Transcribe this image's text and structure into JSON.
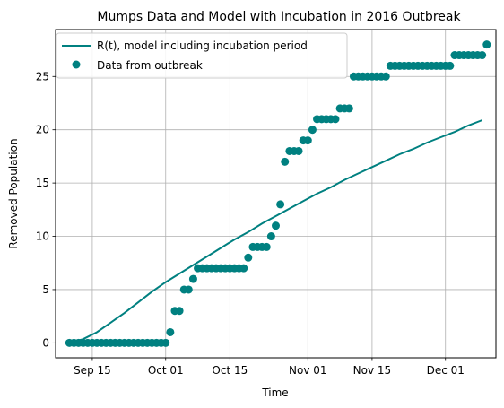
{
  "chart_data": {
    "type": "line",
    "title": "Mumps Data and Model with Incubation in 2016 Outbreak",
    "xlabel": "Time",
    "ylabel": "Removed Population",
    "x_ticks": [
      "Sep 15",
      "Oct 01",
      "Oct 15",
      "Nov 01",
      "Nov 15",
      "Dec 01"
    ],
    "x_tick_dates": [
      "2016-09-15",
      "2016-10-01",
      "2016-10-15",
      "2016-11-01",
      "2016-11-15",
      "2016-12-01"
    ],
    "y_ticks": [
      0,
      5,
      10,
      15,
      20,
      25
    ],
    "xlim": [
      "2016-09-07",
      "2016-12-12"
    ],
    "ylim": [
      -1.4,
      29.4
    ],
    "grid": true,
    "legend_position": "upper-left",
    "series": [
      {
        "name": "R(t), model including incubation period",
        "kind": "line",
        "color": "#008080",
        "x": [
          "2016-09-10",
          "2016-09-13",
          "2016-09-16",
          "2016-09-19",
          "2016-09-22",
          "2016-09-25",
          "2016-09-28",
          "2016-10-01",
          "2016-10-04",
          "2016-10-07",
          "2016-10-10",
          "2016-10-13",
          "2016-10-16",
          "2016-10-19",
          "2016-10-22",
          "2016-10-25",
          "2016-10-28",
          "2016-10-31",
          "2016-11-03",
          "2016-11-06",
          "2016-11-09",
          "2016-11-12",
          "2016-11-15",
          "2016-11-18",
          "2016-11-21",
          "2016-11-24",
          "2016-11-27",
          "2016-11-30",
          "2016-12-03",
          "2016-12-06",
          "2016-12-09"
        ],
        "y": [
          0,
          0.35,
          1.0,
          1.9,
          2.8,
          3.8,
          4.8,
          5.7,
          6.5,
          7.3,
          8.1,
          8.9,
          9.7,
          10.4,
          11.2,
          11.9,
          12.6,
          13.3,
          14.0,
          14.6,
          15.3,
          15.9,
          16.5,
          17.1,
          17.7,
          18.2,
          18.8,
          19.3,
          19.8,
          20.4,
          20.9
        ]
      },
      {
        "name": "Data from outbreak",
        "kind": "scatter",
        "color": "#008080",
        "x": [
          "2016-09-10",
          "2016-09-11",
          "2016-09-12",
          "2016-09-13",
          "2016-09-14",
          "2016-09-15",
          "2016-09-16",
          "2016-09-17",
          "2016-09-18",
          "2016-09-19",
          "2016-09-20",
          "2016-09-21",
          "2016-09-22",
          "2016-09-23",
          "2016-09-24",
          "2016-09-25",
          "2016-09-26",
          "2016-09-27",
          "2016-09-28",
          "2016-09-29",
          "2016-09-30",
          "2016-10-01",
          "2016-10-02",
          "2016-10-03",
          "2016-10-04",
          "2016-10-05",
          "2016-10-06",
          "2016-10-07",
          "2016-10-08",
          "2016-10-09",
          "2016-10-10",
          "2016-10-11",
          "2016-10-12",
          "2016-10-13",
          "2016-10-14",
          "2016-10-15",
          "2016-10-16",
          "2016-10-17",
          "2016-10-18",
          "2016-10-19",
          "2016-10-20",
          "2016-10-21",
          "2016-10-22",
          "2016-10-23",
          "2016-10-24",
          "2016-10-25",
          "2016-10-26",
          "2016-10-27",
          "2016-10-28",
          "2016-10-29",
          "2016-10-30",
          "2016-10-31",
          "2016-11-01",
          "2016-11-02",
          "2016-11-03",
          "2016-11-04",
          "2016-11-05",
          "2016-11-06",
          "2016-11-07",
          "2016-11-08",
          "2016-11-09",
          "2016-11-10",
          "2016-11-11",
          "2016-11-12",
          "2016-11-13",
          "2016-11-14",
          "2016-11-15",
          "2016-11-16",
          "2016-11-17",
          "2016-11-18",
          "2016-11-19",
          "2016-11-20",
          "2016-11-21",
          "2016-11-22",
          "2016-11-23",
          "2016-11-24",
          "2016-11-25",
          "2016-11-26",
          "2016-11-27",
          "2016-11-28",
          "2016-11-29",
          "2016-11-30",
          "2016-12-01",
          "2016-12-02",
          "2016-12-03",
          "2016-12-04",
          "2016-12-05",
          "2016-12-06",
          "2016-12-07",
          "2016-12-08",
          "2016-12-09",
          "2016-12-10"
        ],
        "y": [
          0,
          0,
          0,
          0,
          0,
          0,
          0,
          0,
          0,
          0,
          0,
          0,
          0,
          0,
          0,
          0,
          0,
          0,
          0,
          0,
          0,
          0,
          1,
          3,
          3,
          5,
          5,
          6,
          7,
          7,
          7,
          7,
          7,
          7,
          7,
          7,
          7,
          7,
          7,
          8,
          9,
          9,
          9,
          9,
          10,
          11,
          13,
          17,
          18,
          18,
          18,
          19,
          19,
          20,
          21,
          21,
          21,
          21,
          21,
          22,
          22,
          22,
          25,
          25,
          25,
          25,
          25,
          25,
          25,
          25,
          26,
          26,
          26,
          26,
          26,
          26,
          26,
          26,
          26,
          26,
          26,
          26,
          26,
          26,
          27,
          27,
          27,
          27,
          27,
          27,
          27,
          28
        ]
      }
    ]
  }
}
